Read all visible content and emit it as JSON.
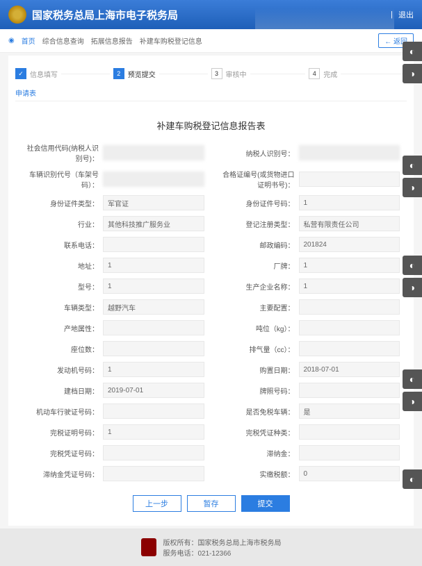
{
  "header": {
    "title": "国家税务总局上海市电子税务局",
    "logout": "退出"
  },
  "nav": {
    "home": "首页",
    "items": [
      "综合信息查询",
      "拓展信息报告",
      "补建车购税登记信息"
    ],
    "back": "返回"
  },
  "steps": [
    {
      "num": "✓",
      "label": "信息填写",
      "state": "done"
    },
    {
      "num": "2",
      "label": "预览提交",
      "state": "active"
    },
    {
      "num": "3",
      "label": "审核中",
      "state": ""
    },
    {
      "num": "4",
      "label": "完成",
      "state": ""
    }
  ],
  "subTab": "申请表",
  "formTitle": "补建车购税登记信息报告表",
  "fields": [
    {
      "label": "社会信用代码(纳税人识别号)：",
      "value": "",
      "blur": true
    },
    {
      "label": "纳税人识别号：",
      "value": "",
      "blur": true
    },
    {
      "label": "车辆识别代号（车架号码）：",
      "value": "",
      "blur": true
    },
    {
      "label": "合格证编号(或货物进口证明书号)：",
      "value": ""
    },
    {
      "label": "身份证件类型：",
      "value": "军官证"
    },
    {
      "label": "身份证件号码：",
      "value": "1"
    },
    {
      "label": "行业：",
      "value": "其他科技推广服务业"
    },
    {
      "label": "登记注册类型：",
      "value": "私营有限责任公司"
    },
    {
      "label": "联系电话：",
      "value": ""
    },
    {
      "label": "邮政编码：",
      "value": "201824"
    },
    {
      "label": "地址：",
      "value": "1"
    },
    {
      "label": "厂牌：",
      "value": "1"
    },
    {
      "label": "型号：",
      "value": "1"
    },
    {
      "label": "生产企业名称：",
      "value": "1"
    },
    {
      "label": "车辆类型：",
      "value": "越野汽车"
    },
    {
      "label": "主要配置：",
      "value": ""
    },
    {
      "label": "产地属性：",
      "value": ""
    },
    {
      "label": "吨位（kg）：",
      "value": ""
    },
    {
      "label": "座位数：",
      "value": ""
    },
    {
      "label": "排气量（cc）：",
      "value": ""
    },
    {
      "label": "发动机号码：",
      "value": "1"
    },
    {
      "label": "购置日期：",
      "value": "2018-07-01"
    },
    {
      "label": "建档日期：",
      "value": "2019-07-01"
    },
    {
      "label": "牌照号码：",
      "value": ""
    },
    {
      "label": "机动车行驶证号码：",
      "value": ""
    },
    {
      "label": "是否免税车辆：",
      "value": "是"
    },
    {
      "label": "完税证明号码：",
      "value": "1"
    },
    {
      "label": "完税凭证种类：",
      "value": ""
    },
    {
      "label": "完税凭证号码：",
      "value": ""
    },
    {
      "label": "滞纳金：",
      "value": ""
    },
    {
      "label": "滞纳金凭证号码：",
      "value": ""
    },
    {
      "label": "实缴税额：",
      "value": "0"
    }
  ],
  "buttons": {
    "prev": "上一步",
    "save": "暂存",
    "submit": "提交"
  },
  "footer": {
    "copyright": "版权所有：国家税务总局上海市税务局",
    "hotline": "服务电话：021-12366"
  }
}
